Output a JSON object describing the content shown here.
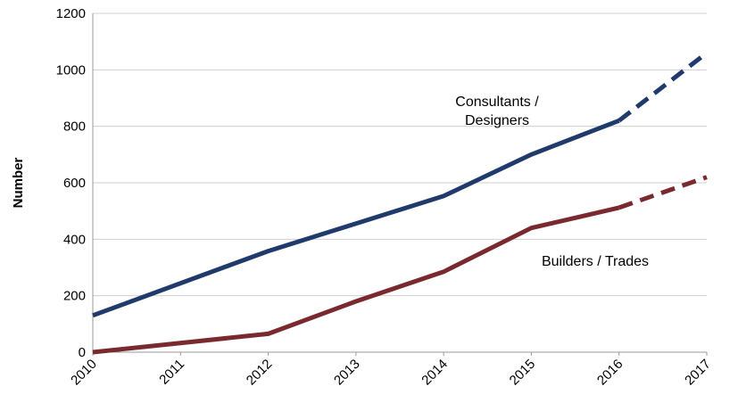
{
  "chart_data": {
    "type": "line",
    "title": "",
    "xlabel": "",
    "ylabel": "Number",
    "x": [
      2010,
      2011,
      2012,
      2013,
      2014,
      2015,
      2016,
      2017
    ],
    "xticks": [
      "2010",
      "2011",
      "2012",
      "2013",
      "2014",
      "2015",
      "2016",
      "2017"
    ],
    "yticks": [
      "0",
      "200",
      "400",
      "600",
      "800",
      "1000",
      "1200"
    ],
    "ylim": [
      0,
      1200
    ],
    "xlim": [
      2010,
      2017
    ],
    "grid": "horizontal",
    "legend": "none",
    "series": [
      {
        "name": "Consultants / Designers",
        "label_lines": [
          "Consultants /",
          "Designers"
        ],
        "color": "#1f3a6b",
        "x": [
          2010,
          2012,
          2014,
          2015,
          2016,
          2017
        ],
        "values": [
          130,
          358,
          553,
          700,
          820,
          1060
        ],
        "projected_from": 2016
      },
      {
        "name": "Builders / Trades",
        "label_lines": [
          "Builders / Trades"
        ],
        "color": "#7a2a2e",
        "x": [
          2010,
          2012,
          2013,
          2014,
          2015,
          2016,
          2017
        ],
        "values": [
          0,
          65,
          180,
          285,
          440,
          512,
          620
        ],
        "projected_from": 2016
      }
    ]
  }
}
